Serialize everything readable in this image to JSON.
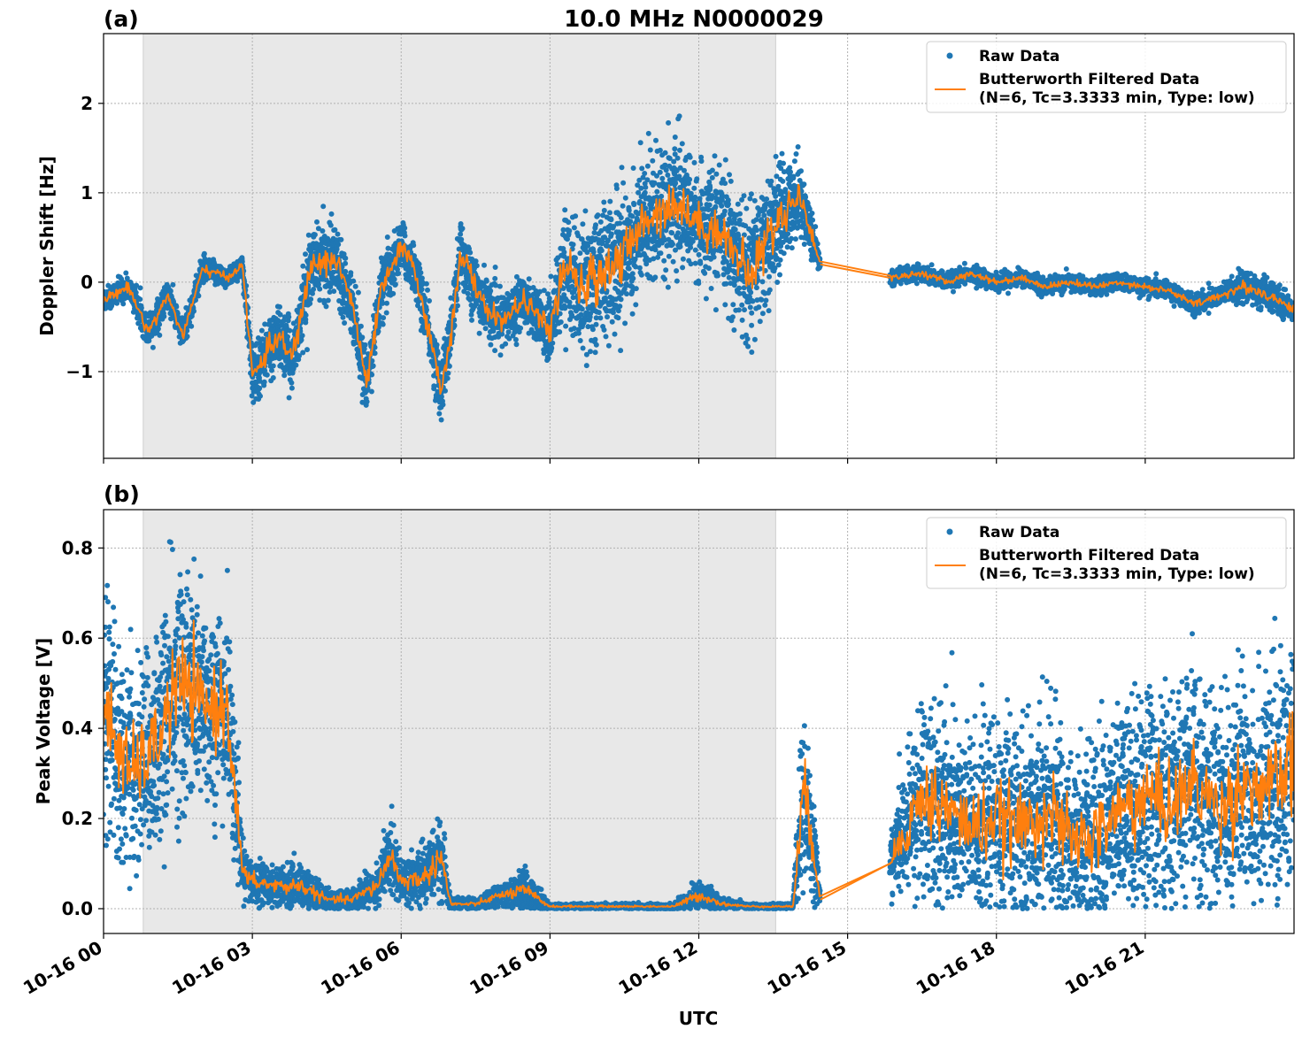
{
  "figure": {
    "title": "10.0 MHz N0000029",
    "xlabel": "UTC"
  },
  "colors": {
    "raw": "#1f77b4",
    "filtered": "#ff7f0e",
    "night_shade": "#e8e8e8",
    "grid": "#b0b0b0"
  },
  "chart_data": [
    {
      "type": "scatter",
      "panel_label": "(a)",
      "title": "10.0 MHz N0000029",
      "ylabel": "Doppler Shift [Hz]",
      "xlabel": "",
      "x_unit": "hours since 10-16 00 UTC",
      "xlim": [
        0,
        24
      ],
      "ylim": [
        -1.97,
        2.78
      ],
      "yticks": [
        -1,
        0,
        1,
        2
      ],
      "ytick_labels": [
        "−1",
        "0",
        "1",
        "2"
      ],
      "xticks": [
        0,
        3,
        6,
        9,
        12,
        15,
        18,
        21
      ],
      "grid": true,
      "legend_position": "top-right",
      "shaded_region": [
        0.8,
        13.55
      ],
      "gaps": [
        [
          14.45,
          15.85
        ]
      ],
      "series": [
        {
          "name": "Raw Data",
          "kind": "scatter",
          "x": [
            0,
            0.5,
            0.9,
            1.3,
            1.6,
            2.0,
            2.5,
            2.8,
            3.0,
            3.5,
            3.8,
            4.2,
            4.7,
            5.0,
            5.3,
            5.6,
            6.0,
            6.3,
            6.8,
            7.0,
            7.2,
            7.6,
            8.0,
            8.5,
            9.0,
            9.3,
            9.6,
            10.0,
            10.5,
            11.0,
            11.5,
            12.0,
            12.5,
            13.0,
            13.5,
            14.0,
            14.3,
            14.45,
            15.85,
            16.5,
            17.0,
            17.5,
            18.0,
            18.5,
            19.0,
            19.5,
            20.0,
            20.5,
            21.0,
            21.5,
            22.0,
            22.5,
            23.0,
            23.5,
            24.0
          ],
          "y": [
            -0.2,
            -0.05,
            -0.55,
            -0.15,
            -0.6,
            0.15,
            0.05,
            0.2,
            -1.05,
            -0.6,
            -0.85,
            0.2,
            0.25,
            -0.2,
            -1.15,
            -0.1,
            0.4,
            0.1,
            -1.2,
            -0.6,
            0.35,
            -0.2,
            -0.45,
            -0.2,
            -0.55,
            0.2,
            -0.1,
            0.1,
            0.3,
            0.75,
            0.9,
            0.65,
            0.55,
            0.05,
            0.6,
            1.0,
            0.5,
            0.2,
            0.05,
            0.1,
            0.0,
            0.1,
            0.0,
            0.05,
            -0.05,
            0.0,
            -0.05,
            0.0,
            -0.05,
            -0.1,
            -0.25,
            -0.15,
            -0.05,
            -0.15,
            -0.3
          ],
          "spread": [
            0.12,
            0.12,
            0.15,
            0.15,
            0.15,
            0.12,
            0.1,
            0.1,
            0.3,
            0.3,
            0.3,
            0.35,
            0.35,
            0.3,
            0.25,
            0.3,
            0.25,
            0.25,
            0.3,
            0.3,
            0.35,
            0.3,
            0.25,
            0.25,
            0.3,
            0.55,
            0.6,
            0.7,
            0.65,
            0.65,
            0.6,
            0.5,
            0.55,
            0.7,
            0.6,
            0.35,
            0.25,
            0.05,
            0.08,
            0.08,
            0.08,
            0.08,
            0.08,
            0.08,
            0.08,
            0.08,
            0.08,
            0.08,
            0.08,
            0.08,
            0.1,
            0.1,
            0.15,
            0.15,
            0.1
          ]
        },
        {
          "name": "Butterworth Filtered Data\n(N=6, Tc=3.3333 min, Type: low)",
          "name_lines": [
            "Butterworth Filtered Data",
            "(N=6, Tc=3.3333 min, Type: low)"
          ],
          "kind": "line",
          "x": [
            0,
            0.5,
            0.9,
            1.3,
            1.6,
            2.0,
            2.5,
            2.8,
            3.0,
            3.5,
            3.8,
            4.2,
            4.7,
            5.0,
            5.3,
            5.6,
            6.0,
            6.3,
            6.8,
            7.0,
            7.2,
            7.6,
            8.0,
            8.5,
            9.0,
            9.3,
            9.6,
            10.0,
            10.5,
            11.0,
            11.5,
            12.0,
            12.5,
            13.0,
            13.5,
            14.0,
            14.3,
            14.45,
            15.85,
            16.5,
            17.0,
            17.5,
            18.0,
            18.5,
            19.0,
            19.5,
            20.0,
            20.5,
            21.0,
            21.5,
            22.0,
            22.5,
            23.0,
            23.5,
            24.0
          ],
          "y": [
            -0.2,
            -0.05,
            -0.55,
            -0.15,
            -0.6,
            0.15,
            0.05,
            0.2,
            -1.05,
            -0.6,
            -0.85,
            0.2,
            0.25,
            -0.2,
            -1.15,
            -0.1,
            0.4,
            0.1,
            -1.2,
            -0.6,
            0.35,
            -0.2,
            -0.45,
            -0.2,
            -0.55,
            0.2,
            -0.1,
            0.1,
            0.3,
            0.75,
            0.9,
            0.65,
            0.55,
            0.05,
            0.6,
            1.0,
            0.5,
            0.2,
            0.05,
            0.1,
            0.0,
            0.1,
            0.0,
            0.05,
            -0.05,
            0.0,
            -0.05,
            0.0,
            -0.05,
            -0.1,
            -0.25,
            -0.15,
            -0.05,
            -0.15,
            -0.3
          ]
        }
      ]
    },
    {
      "type": "scatter",
      "panel_label": "(b)",
      "title": "",
      "ylabel": "Peak Voltage [V]",
      "xlabel": "UTC",
      "x_unit": "hours since 10-16 00 UTC",
      "xlim": [
        0,
        24
      ],
      "ylim": [
        -0.055,
        0.885
      ],
      "yticks": [
        0.0,
        0.2,
        0.4,
        0.6,
        0.8
      ],
      "ytick_labels": [
        "0.0",
        "0.2",
        "0.4",
        "0.6",
        "0.8"
      ],
      "xticks": [
        0,
        3,
        6,
        9,
        12,
        15,
        18,
        21
      ],
      "xtick_labels": [
        "10-16 00",
        "10-16 03",
        "10-16 06",
        "10-16 09",
        "10-16 12",
        "10-16 15",
        "10-16 18",
        "10-16 21"
      ],
      "grid": true,
      "legend_position": "top-right",
      "shaded_region": [
        0.8,
        13.55
      ],
      "gaps": [
        [
          14.45,
          15.85
        ]
      ],
      "series": [
        {
          "name": "Raw Data",
          "kind": "scatter",
          "x": [
            0,
            0.5,
            1.0,
            1.5,
            2.0,
            2.5,
            2.8,
            3.0,
            3.5,
            4.0,
            4.5,
            5.0,
            5.5,
            5.8,
            6.0,
            6.5,
            6.8,
            7.0,
            7.5,
            8.0,
            8.5,
            9.0,
            9.5,
            10.0,
            10.5,
            11.0,
            11.5,
            12.0,
            12.5,
            13.0,
            13.5,
            13.9,
            14.1,
            14.3,
            14.45,
            15.85,
            16.5,
            17.0,
            17.5,
            18.0,
            18.5,
            19.0,
            19.5,
            20.0,
            20.5,
            21.0,
            21.5,
            22.0,
            22.5,
            23.0,
            23.5,
            24.0
          ],
          "y": [
            0.45,
            0.3,
            0.35,
            0.5,
            0.45,
            0.45,
            0.08,
            0.06,
            0.05,
            0.05,
            0.02,
            0.02,
            0.05,
            0.12,
            0.06,
            0.07,
            0.12,
            0.01,
            0.01,
            0.03,
            0.04,
            0.005,
            0.005,
            0.005,
            0.005,
            0.005,
            0.005,
            0.03,
            0.01,
            0.005,
            0.005,
            0.005,
            0.25,
            0.15,
            0.02,
            0.1,
            0.25,
            0.22,
            0.18,
            0.2,
            0.18,
            0.22,
            0.15,
            0.16,
            0.22,
            0.25,
            0.23,
            0.28,
            0.22,
            0.28,
            0.26,
            0.32
          ],
          "spread": [
            0.25,
            0.2,
            0.2,
            0.25,
            0.2,
            0.2,
            0.05,
            0.04,
            0.04,
            0.04,
            0.02,
            0.02,
            0.04,
            0.08,
            0.04,
            0.05,
            0.08,
            0.01,
            0.01,
            0.02,
            0.04,
            0.005,
            0.005,
            0.005,
            0.005,
            0.005,
            0.005,
            0.03,
            0.01,
            0.005,
            0.005,
            0.005,
            0.2,
            0.12,
            0.01,
            0.05,
            0.2,
            0.2,
            0.18,
            0.2,
            0.18,
            0.2,
            0.18,
            0.18,
            0.2,
            0.22,
            0.2,
            0.22,
            0.2,
            0.22,
            0.22,
            0.25
          ]
        },
        {
          "name": "Butterworth Filtered Data\n(N=6, Tc=3.3333 min, Type: low)",
          "name_lines": [
            "Butterworth Filtered Data",
            "(N=6, Tc=3.3333 min, Type: low)"
          ],
          "kind": "line",
          "x": [
            0,
            0.5,
            1.0,
            1.5,
            2.0,
            2.5,
            2.8,
            3.0,
            3.5,
            4.0,
            4.5,
            5.0,
            5.5,
            5.8,
            6.0,
            6.5,
            6.8,
            7.0,
            7.5,
            8.0,
            8.5,
            9.0,
            9.5,
            10.0,
            10.5,
            11.0,
            11.5,
            12.0,
            12.5,
            13.0,
            13.5,
            13.9,
            14.1,
            14.3,
            14.45,
            15.85,
            16.5,
            17.0,
            17.5,
            18.0,
            18.5,
            19.0,
            19.5,
            20.0,
            20.5,
            21.0,
            21.5,
            22.0,
            22.5,
            23.0,
            23.5,
            24.0
          ],
          "y": [
            0.45,
            0.3,
            0.35,
            0.5,
            0.45,
            0.45,
            0.08,
            0.06,
            0.05,
            0.05,
            0.02,
            0.02,
            0.05,
            0.12,
            0.06,
            0.07,
            0.12,
            0.01,
            0.01,
            0.03,
            0.04,
            0.005,
            0.005,
            0.005,
            0.005,
            0.005,
            0.005,
            0.03,
            0.01,
            0.005,
            0.005,
            0.005,
            0.25,
            0.15,
            0.02,
            0.1,
            0.25,
            0.22,
            0.18,
            0.2,
            0.18,
            0.22,
            0.15,
            0.16,
            0.22,
            0.25,
            0.23,
            0.28,
            0.22,
            0.28,
            0.26,
            0.32
          ]
        }
      ]
    }
  ]
}
